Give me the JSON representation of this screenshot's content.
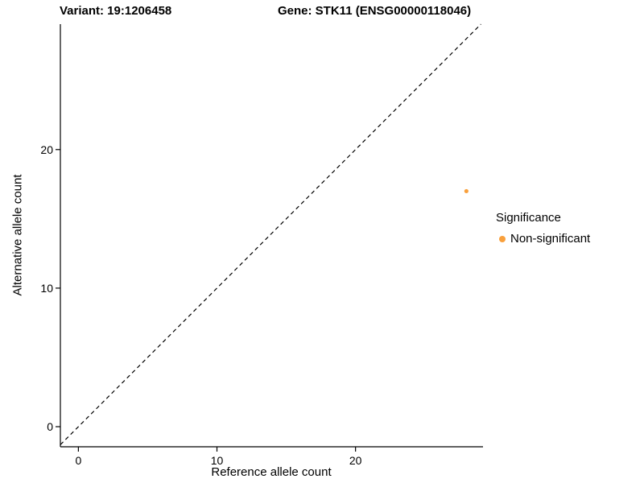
{
  "titles": {
    "variant": "Variant: 19:1206458",
    "gene": "Gene: STK11 (ENSG00000118046)"
  },
  "chart_data": {
    "type": "scatter",
    "xlabel": "Reference allele count",
    "ylabel": "Alternative allele count",
    "xlim": [
      -1.3,
      29.2
    ],
    "ylim": [
      -1.45,
      29.05
    ],
    "xticks": [
      0,
      10,
      20
    ],
    "yticks": [
      0,
      10,
      20
    ],
    "grid": false,
    "points": [
      {
        "x": 28,
        "y": 17,
        "series": "Non-significant"
      }
    ],
    "point_color": "#F9A03C",
    "identity_line": {
      "style": "dashed",
      "color": "#000000",
      "note": "y = x reference line"
    },
    "legend": {
      "title": "Significance",
      "position": "right",
      "entries": [
        {
          "label": "Non-significant",
          "color": "#F9A03C"
        }
      ]
    }
  }
}
